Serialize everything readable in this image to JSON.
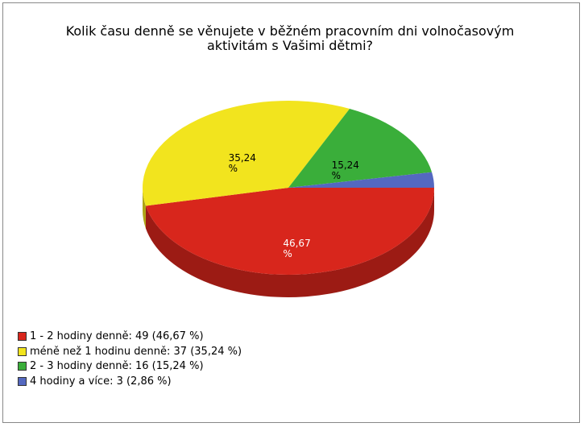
{
  "chart_data": {
    "type": "pie",
    "title": "Kolik času denně se věnujete v běžném pracovním dni volnočasovým aktivitám s Vašimi dětmi?",
    "categories": [
      "1 - 2 hodiny denně: 49 (46,67 %)",
      "méně než 1 hodinu denně: 37 (35,24 %)",
      "2 - 3 hodiny denně: 16 (15,24 %)",
      "4 hodiny a více: 3 (2,86 %)"
    ],
    "values": [
      46.67,
      35.24,
      15.24,
      2.86
    ],
    "value_labels": [
      "46,67 %",
      "35,24 %",
      "15,24 %",
      null
    ],
    "colors": [
      "#d8261c",
      "#f2e41e",
      "#3aae3a",
      "#5468c0"
    ],
    "legend": "bottom-left"
  }
}
